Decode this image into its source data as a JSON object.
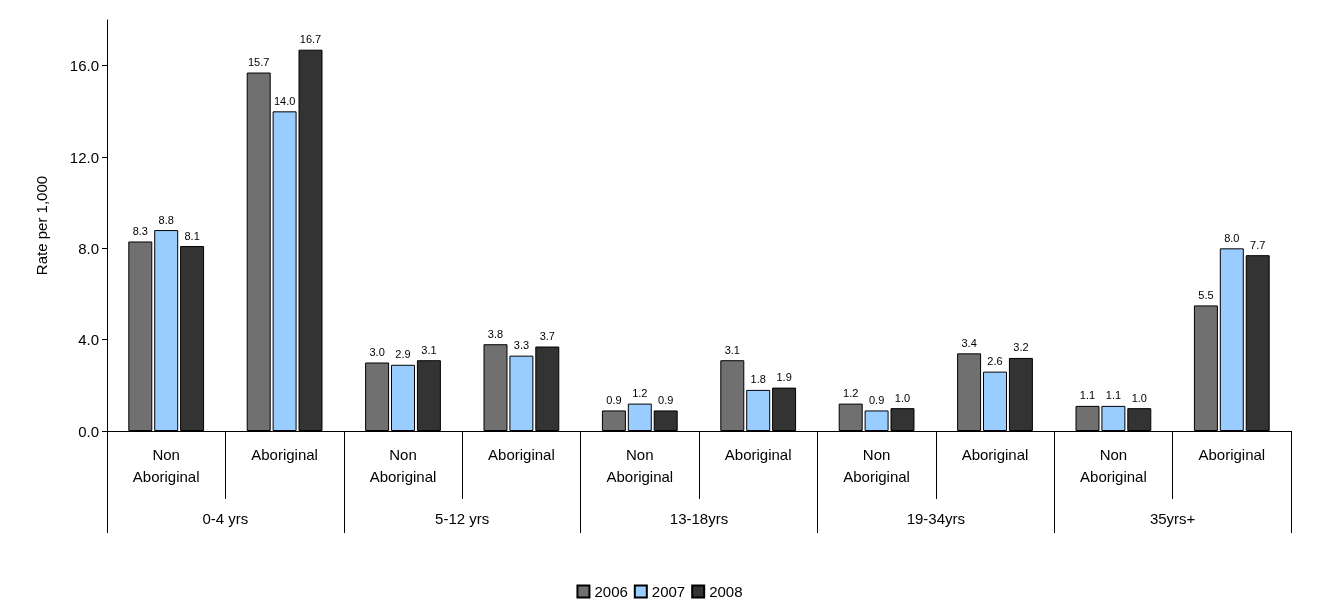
{
  "chart_data": {
    "type": "bar",
    "ylabel": "Rate per 1,000",
    "categories": [
      "Non Aboriginal",
      "Aboriginal",
      "Non Aboriginal",
      "Aboriginal",
      "Non Aboriginal",
      "Aboriginal",
      "Non Aboriginal",
      "Aboriginal",
      "Non Aboriginal",
      "Aboriginal"
    ],
    "annotations": [
      "0-4 yrs",
      "5-12 yrs",
      "13-18yrs",
      "19-34yrs",
      "35yrs+"
    ],
    "series": [
      {
        "name": "2006",
        "color": "#707070",
        "values": [
          8.3,
          15.7,
          3.0,
          3.8,
          0.9,
          3.1,
          1.2,
          3.4,
          1.1,
          5.5
        ],
        "value_labels": [
          "8.3",
          "15.7",
          "3.0",
          "3.8",
          "0.9",
          "3.1",
          "1.2",
          "3.4",
          "1.1",
          "5.5"
        ]
      },
      {
        "name": "2007",
        "color": "#99ccff",
        "values": [
          8.8,
          14.0,
          2.9,
          3.3,
          1.2,
          1.8,
          0.9,
          2.6,
          1.1,
          8.0
        ],
        "value_labels": [
          "8.8",
          "14.0",
          "2.9",
          "3.3",
          "1.2",
          "1.8",
          "0.9",
          "2.6",
          "1.1",
          "8.0"
        ]
      },
      {
        "name": "2008",
        "color": "#333333",
        "values": [
          8.1,
          16.7,
          3.1,
          3.7,
          0.9,
          1.9,
          1.0,
          3.2,
          1.0,
          7.7
        ],
        "value_labels": [
          "8.1",
          "16.7",
          "3.1",
          "3.7",
          "0.9",
          "1.9",
          "1.0",
          "3.2",
          "1.0",
          "7.7"
        ]
      }
    ],
    "ylim": [
      0,
      18
    ],
    "yticks": [
      {
        "value": 0,
        "label": "0.0"
      },
      {
        "value": 4,
        "label": "4.0"
      },
      {
        "value": 8,
        "label": "8.0"
      },
      {
        "value": 12,
        "label": "12.0"
      },
      {
        "value": 16,
        "label": "16.0"
      }
    ],
    "grid": false,
    "legend": "bottom"
  }
}
